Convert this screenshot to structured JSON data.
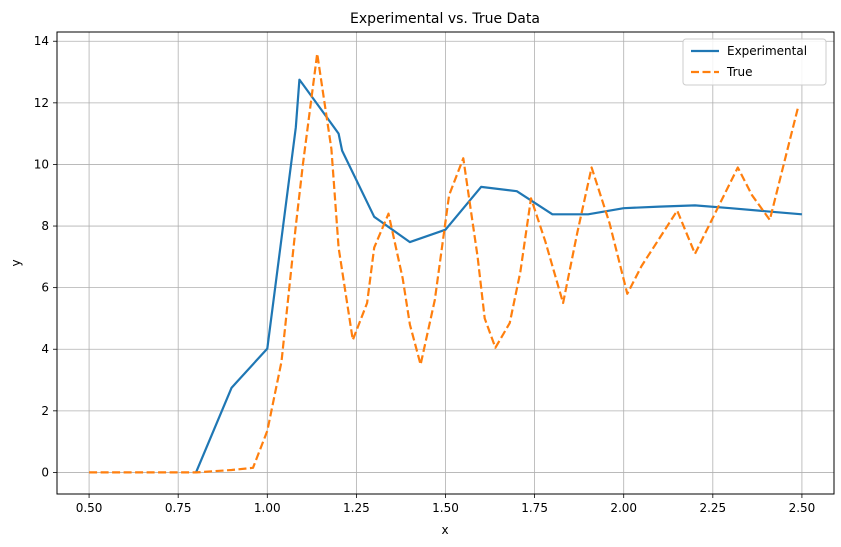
{
  "chart_data": {
    "type": "line",
    "title": "Experimental vs. True Data",
    "xlabel": "x",
    "ylabel": "y",
    "xlim": [
      0.41,
      2.59
    ],
    "ylim": [
      -0.7,
      14.3
    ],
    "grid": true,
    "legend_position": "top-right",
    "xticks": [
      0.5,
      0.75,
      1.0,
      1.25,
      1.5,
      1.75,
      2.0,
      2.25,
      2.5
    ],
    "xtick_labels": [
      "0.50",
      "0.75",
      "1.00",
      "1.25",
      "1.50",
      "1.75",
      "2.00",
      "2.25",
      "2.50"
    ],
    "yticks": [
      0,
      2,
      4,
      6,
      8,
      10,
      12,
      14
    ],
    "ytick_labels": [
      "0",
      "2",
      "4",
      "6",
      "8",
      "10",
      "12",
      "14"
    ],
    "series": [
      {
        "name": "Experimental",
        "color": "#1f77b4",
        "style": "solid",
        "x": [
          0.8,
          0.9,
          1.0,
          1.08,
          1.09,
          1.1,
          1.15,
          1.2,
          1.21,
          1.3,
          1.4,
          1.5,
          1.6,
          1.7,
          1.8,
          1.9,
          2.0,
          2.1,
          2.2,
          2.3,
          2.4,
          2.5
        ],
        "y": [
          0.0,
          2.75,
          4.02,
          11.2,
          12.75,
          12.6,
          11.8,
          11.0,
          10.45,
          8.3,
          7.48,
          7.88,
          9.27,
          9.13,
          8.38,
          8.38,
          8.58,
          8.63,
          8.67,
          8.58,
          8.48,
          8.38
        ]
      },
      {
        "name": "True",
        "color": "#ff7f0e",
        "style": "dashed",
        "x": [
          0.5,
          0.6,
          0.7,
          0.8,
          0.9,
          0.96,
          1.0,
          1.04,
          1.08,
          1.1,
          1.14,
          1.18,
          1.2,
          1.24,
          1.28,
          1.3,
          1.34,
          1.38,
          1.4,
          1.43,
          1.47,
          1.51,
          1.55,
          1.59,
          1.61,
          1.64,
          1.68,
          1.71,
          1.74,
          1.78,
          1.83,
          1.87,
          1.91,
          1.96,
          2.01,
          2.05,
          2.1,
          2.15,
          2.2,
          2.26,
          2.32,
          2.36,
          2.41,
          2.49
        ],
        "y": [
          0.0,
          0.0,
          0.0,
          0.0,
          0.08,
          0.15,
          1.35,
          3.6,
          8.0,
          10.0,
          13.6,
          10.5,
          7.3,
          4.3,
          5.5,
          7.3,
          8.4,
          6.3,
          4.8,
          3.5,
          5.6,
          9.0,
          10.2,
          7.0,
          5.0,
          4.05,
          4.85,
          6.5,
          8.9,
          7.5,
          5.5,
          7.8,
          9.9,
          8.1,
          5.8,
          6.7,
          7.6,
          8.5,
          7.1,
          8.5,
          9.9,
          9.0,
          8.2,
          11.9
        ]
      }
    ]
  }
}
